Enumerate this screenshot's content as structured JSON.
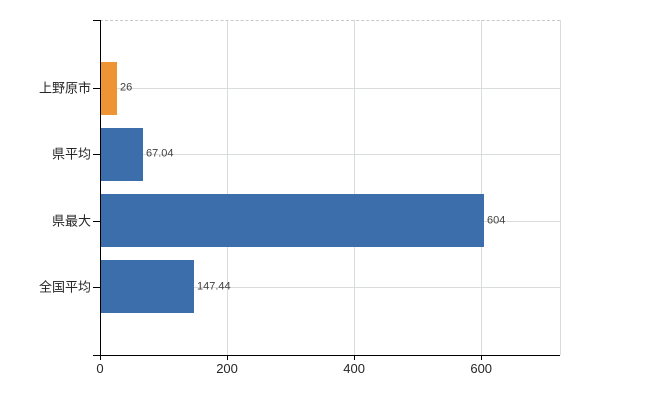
{
  "chart_data": {
    "type": "bar",
    "orientation": "horizontal",
    "categories": [
      "上野原市",
      "県平均",
      "県最大",
      "全国平均"
    ],
    "values": [
      26,
      67.04,
      604,
      147.44
    ],
    "data_labels": [
      "26",
      "67.04",
      "604",
      "147.44"
    ],
    "bar_colors": [
      "#EE9435",
      "#3D6EAC",
      "#3D6EAC",
      "#3D6EAC"
    ],
    "x_ticks": [
      0,
      200,
      400,
      600
    ],
    "x_tick_labels": [
      "0",
      "200",
      "400",
      "600"
    ],
    "xlim": [
      0,
      724
    ],
    "grid": true,
    "legend": false,
    "title": "",
    "xlabel": "",
    "ylabel": ""
  },
  "colors": {
    "background": "#FFFFFF",
    "bar_orange": "#EE9435",
    "bar_blue": "#3D6EAC",
    "gridline": "#D9DDD9",
    "top_dashed_border": "#C9C9C9",
    "axis": "#000000",
    "data_label_text": "#404040",
    "tick_label_text": "#262626"
  }
}
